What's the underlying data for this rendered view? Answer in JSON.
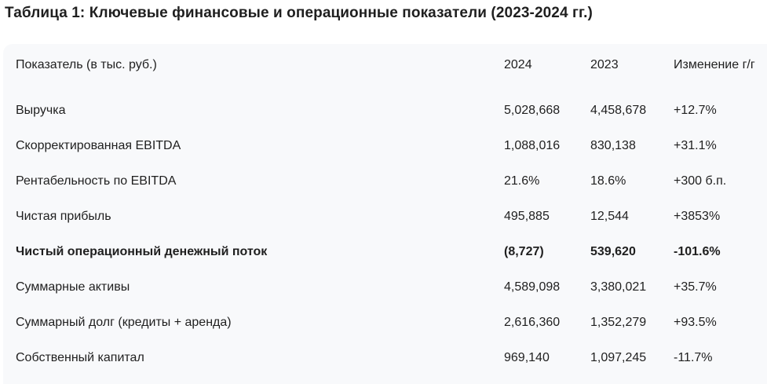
{
  "title": "Таблица 1: Ключевые финансовые и операционные показатели (2023-2024 гг.)",
  "table": {
    "headers": [
      "Показатель (в тыс. руб.)",
      "2024",
      "2023",
      "Изменение г/г"
    ],
    "rows": [
      {
        "label": "Выручка",
        "v2024": "5,028,668",
        "v2023": "4,458,678",
        "change": "+12.7%",
        "bold": false
      },
      {
        "label": "Скорректированная EBITDA",
        "v2024": "1,088,016",
        "v2023": "830,138",
        "change": "+31.1%",
        "bold": false
      },
      {
        "label": "Рентабельность по EBITDA",
        "v2024": "21.6%",
        "v2023": "18.6%",
        "change": "+300 б.п.",
        "bold": false
      },
      {
        "label": "Чистая прибыль",
        "v2024": "495,885",
        "v2023": "12,544",
        "change": "+3853%",
        "bold": false
      },
      {
        "label": "Чистый операционный денежный поток",
        "v2024": "(8,727)",
        "v2023": "539,620",
        "change": "-101.6%",
        "bold": true
      },
      {
        "label": "Суммарные активы",
        "v2024": "4,589,098",
        "v2023": "3,380,021",
        "change": "+35.7%",
        "bold": false
      },
      {
        "label": "Суммарный долг (кредиты + аренда)",
        "v2024": "2,616,360",
        "v2023": "1,352,279",
        "change": "+93.5%",
        "bold": false
      },
      {
        "label": "Собственный капитал",
        "v2024": "969,140",
        "v2023": "1,097,245",
        "change": "-11.7%",
        "bold": false
      }
    ]
  }
}
